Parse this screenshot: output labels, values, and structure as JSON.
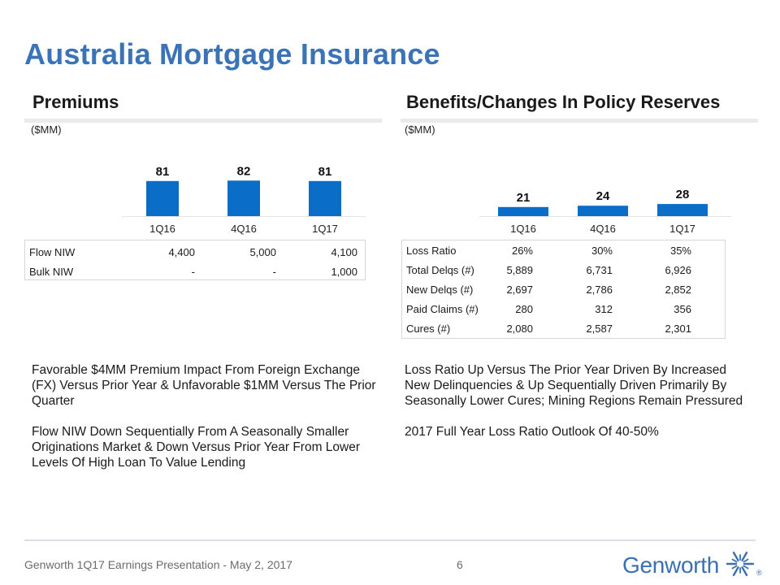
{
  "title": "Australia Mortgage Insurance",
  "left": {
    "heading": "Premiums",
    "unit": "($MM)",
    "chart_data": {
      "type": "bar",
      "title": "Premiums",
      "ylabel": "($MM)",
      "categories": [
        "1Q16",
        "4Q16",
        "1Q17"
      ],
      "values": [
        81,
        82,
        81
      ],
      "ylim": [
        0,
        90
      ],
      "color": "#0a6ec9"
    },
    "table": [
      {
        "label": "Flow NIW",
        "values": [
          "4,400",
          "5,000",
          "4,100"
        ]
      },
      {
        "label": "Bulk NIW",
        "values": [
          "-",
          "-",
          "1,000"
        ]
      }
    ],
    "bullets": [
      "Favorable $4MM Premium Impact From Foreign Exchange (FX) Versus Prior Year & Unfavorable $1MM Versus The Prior Quarter",
      "Flow NIW Down Sequentially From A Seasonally Smaller Originations Market & Down Versus Prior Year From Lower Levels Of High Loan To Value Lending"
    ]
  },
  "right": {
    "heading": "Benefits/Changes In Policy Reserves",
    "unit": "($MM)",
    "chart_data": {
      "type": "bar",
      "title": "Benefits/Changes In Policy Reserves",
      "ylabel": "($MM)",
      "categories": [
        "1Q16",
        "4Q16",
        "1Q17"
      ],
      "values": [
        21,
        24,
        28
      ],
      "ylim": [
        0,
        90
      ],
      "color": "#0a6ec9"
    },
    "table": [
      {
        "label": "Loss Ratio",
        "values": [
          "26%",
          "30%",
          "35%"
        ]
      },
      {
        "label": "Total Delqs (#)",
        "values": [
          "5,889",
          "6,731",
          "6,926"
        ]
      },
      {
        "label": "New Delqs (#)",
        "values": [
          "2,697",
          "2,786",
          "2,852"
        ]
      },
      {
        "label": "Paid Claims (#)",
        "values": [
          "280",
          "312",
          "356"
        ]
      },
      {
        "label": "Cures (#)",
        "values": [
          "2,080",
          "2,587",
          "2,301"
        ]
      }
    ],
    "bullets": [
      "Loss Ratio Up Versus The Prior Year Driven By Increased New Delinquencies & Up Sequentially Driven Primarily By Seasonally Lower Cures; Mining Regions Remain Pressured",
      "2017 Full Year Loss Ratio Outlook Of 40-50%"
    ]
  },
  "footer": {
    "text": "Genworth 1Q17 Earnings Presentation - May 2, 2017",
    "page": "6",
    "logo_word": "Genworth",
    "logo_reg": "®",
    "logo_icon": "genworth-star-icon",
    "brand_color": "#3b6fb0"
  }
}
